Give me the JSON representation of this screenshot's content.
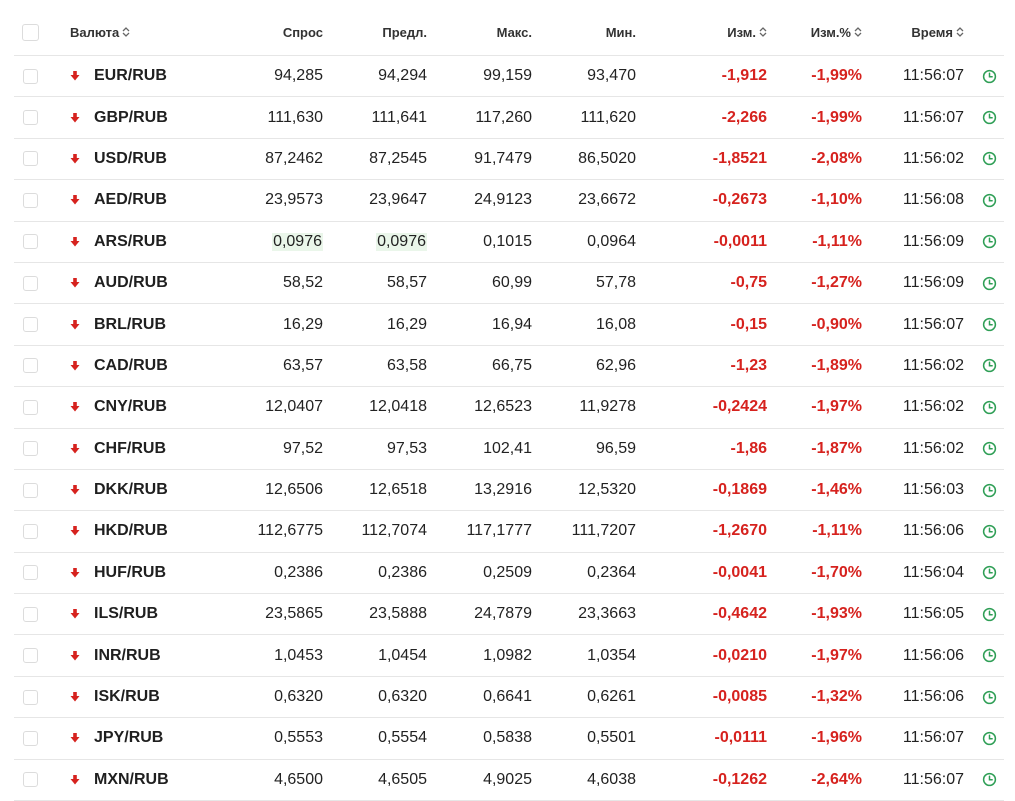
{
  "header": {
    "currency": "Валюта",
    "bid": "Спрос",
    "ask": "Предл.",
    "max": "Макс.",
    "min": "Мин.",
    "change": "Изм.",
    "change_pct": "Изм.%",
    "time": "Время"
  },
  "rows": [
    {
      "pair": "EUR/RUB",
      "bid": "94,285",
      "ask": "94,294",
      "max": "99,159",
      "min": "93,470",
      "change": "-1,912",
      "change_pct": "-1,99%",
      "time": "11:56:07"
    },
    {
      "pair": "GBP/RUB",
      "bid": "111,630",
      "ask": "111,641",
      "max": "117,260",
      "min": "111,620",
      "change": "-2,266",
      "change_pct": "-1,99%",
      "time": "11:56:07"
    },
    {
      "pair": "USD/RUB",
      "bid": "87,2462",
      "ask": "87,2545",
      "max": "91,7479",
      "min": "86,5020",
      "change": "-1,8521",
      "change_pct": "-2,08%",
      "time": "11:56:02"
    },
    {
      "pair": "AED/RUB",
      "bid": "23,9573",
      "ask": "23,9647",
      "max": "24,9123",
      "min": "23,6672",
      "change": "-0,2673",
      "change_pct": "-1,10%",
      "time": "11:56:08"
    },
    {
      "pair": "ARS/RUB",
      "bid": "0,0976",
      "ask": "0,0976",
      "max": "0,1015",
      "min": "0,0964",
      "change": "-0,0011",
      "change_pct": "-1,11%",
      "time": "11:56:09"
    },
    {
      "pair": "AUD/RUB",
      "bid": "58,52",
      "ask": "58,57",
      "max": "60,99",
      "min": "57,78",
      "change": "-0,75",
      "change_pct": "-1,27%",
      "time": "11:56:09"
    },
    {
      "pair": "BRL/RUB",
      "bid": "16,29",
      "ask": "16,29",
      "max": "16,94",
      "min": "16,08",
      "change": "-0,15",
      "change_pct": "-0,90%",
      "time": "11:56:07"
    },
    {
      "pair": "CAD/RUB",
      "bid": "63,57",
      "ask": "63,58",
      "max": "66,75",
      "min": "62,96",
      "change": "-1,23",
      "change_pct": "-1,89%",
      "time": "11:56:02"
    },
    {
      "pair": "CNY/RUB",
      "bid": "12,0407",
      "ask": "12,0418",
      "max": "12,6523",
      "min": "11,9278",
      "change": "-0,2424",
      "change_pct": "-1,97%",
      "time": "11:56:02"
    },
    {
      "pair": "CHF/RUB",
      "bid": "97,52",
      "ask": "97,53",
      "max": "102,41",
      "min": "96,59",
      "change": "-1,86",
      "change_pct": "-1,87%",
      "time": "11:56:02"
    },
    {
      "pair": "DKK/RUB",
      "bid": "12,6506",
      "ask": "12,6518",
      "max": "13,2916",
      "min": "12,5320",
      "change": "-0,1869",
      "change_pct": "-1,46%",
      "time": "11:56:03"
    },
    {
      "pair": "HKD/RUB",
      "bid": "112,6775",
      "ask": "112,7074",
      "max": "117,1777",
      "min": "111,7207",
      "change": "-1,2670",
      "change_pct": "-1,11%",
      "time": "11:56:06"
    },
    {
      "pair": "HUF/RUB",
      "bid": "0,2386",
      "ask": "0,2386",
      "max": "0,2509",
      "min": "0,2364",
      "change": "-0,0041",
      "change_pct": "-1,70%",
      "time": "11:56:04"
    },
    {
      "pair": "ILS/RUB",
      "bid": "23,5865",
      "ask": "23,5888",
      "max": "24,7879",
      "min": "23,3663",
      "change": "-0,4642",
      "change_pct": "-1,93%",
      "time": "11:56:05"
    },
    {
      "pair": "INR/RUB",
      "bid": "1,0453",
      "ask": "1,0454",
      "max": "1,0982",
      "min": "1,0354",
      "change": "-0,0210",
      "change_pct": "-1,97%",
      "time": "11:56:06"
    },
    {
      "pair": "ISK/RUB",
      "bid": "0,6320",
      "ask": "0,6320",
      "max": "0,6641",
      "min": "0,6261",
      "change": "-0,0085",
      "change_pct": "-1,32%",
      "time": "11:56:06"
    },
    {
      "pair": "JPY/RUB",
      "bid": "0,5553",
      "ask": "0,5554",
      "max": "0,5838",
      "min": "0,5501",
      "change": "-0,0111",
      "change_pct": "-1,96%",
      "time": "11:56:07"
    },
    {
      "pair": "MXN/RUB",
      "bid": "4,6500",
      "ask": "4,6505",
      "max": "4,9025",
      "min": "4,6038",
      "change": "-0,1262",
      "change_pct": "-2,64%",
      "time": "11:56:07"
    }
  ],
  "highlighted_cells": [
    {
      "row": 4,
      "columns": [
        "bid",
        "ask"
      ],
      "color": "#eaf6ea"
    }
  ],
  "colors": {
    "negative": "#d6221e",
    "clock": "#2e9e55",
    "down_arrow": "#d6221e",
    "highlight": "#eaf6ea"
  },
  "icons": {
    "trend": "arrow-down-icon",
    "row_status": "clock-icon",
    "sort": "sort-icon"
  }
}
